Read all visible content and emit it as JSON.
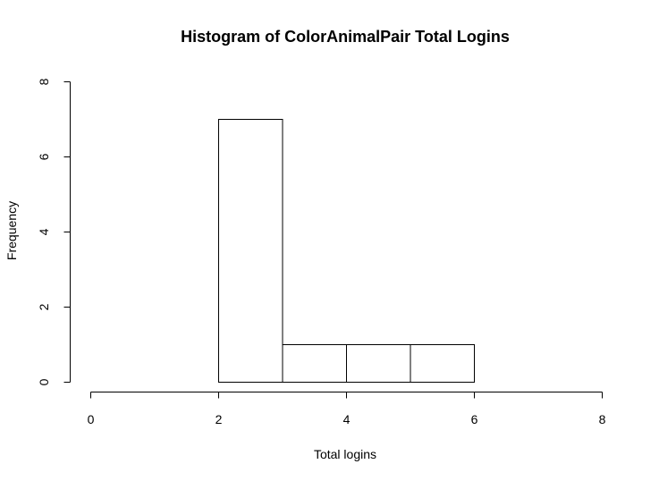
{
  "chart_data": {
    "type": "bar",
    "title": "Histogram of ColorAnimalPair Total Logins",
    "xlabel": "Total logins",
    "ylabel": "Frequency",
    "bins": [
      {
        "start": 2,
        "end": 3,
        "count": 7
      },
      {
        "start": 3,
        "end": 4,
        "count": 1
      },
      {
        "start": 4,
        "end": 5,
        "count": 1
      },
      {
        "start": 5,
        "end": 6,
        "count": 1
      }
    ],
    "xlim": [
      0,
      8
    ],
    "ylim": [
      0,
      8
    ],
    "x_ticks": [
      0,
      2,
      4,
      6,
      8
    ],
    "y_ticks": [
      0,
      2,
      4,
      6,
      8
    ],
    "grid": false,
    "bar_fill": "#ffffff",
    "bar_stroke": "#000000"
  }
}
